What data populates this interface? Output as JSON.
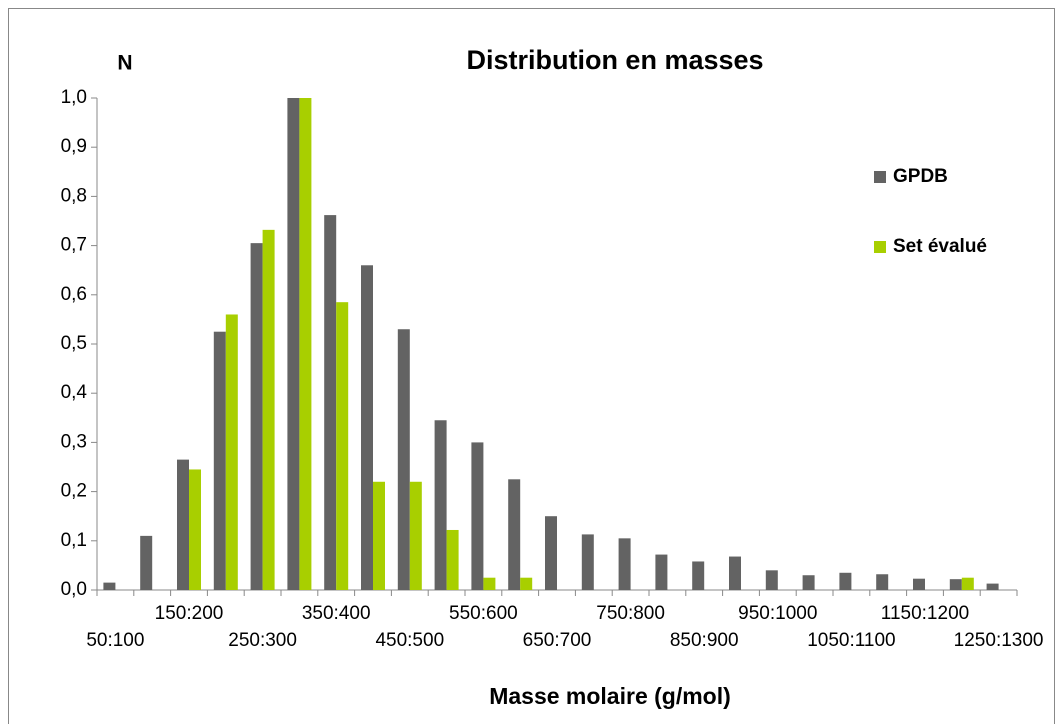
{
  "chart_data": {
    "type": "bar",
    "title": "Distribution en masses",
    "y_label": "N",
    "x_label": "Masse molaire (g/mol)",
    "categories": [
      "50:100",
      null,
      "150:200",
      null,
      "250:300",
      null,
      "350:400",
      null,
      "450:500",
      null,
      "550:600",
      null,
      "650:700",
      null,
      "750:800",
      null,
      "850:900",
      null,
      "950:1000",
      null,
      "1050:1100",
      null,
      "1150:1200",
      null,
      "1250:1300"
    ],
    "series": [
      {
        "name": "GPDB",
        "color": "#636363",
        "values": [
          0.015,
          0.11,
          0.265,
          0.525,
          0.705,
          1.0,
          0.762,
          0.66,
          0.53,
          0.345,
          0.3,
          0.225,
          0.15,
          0.113,
          0.105,
          0.072,
          0.058,
          0.068,
          0.04,
          0.03,
          0.035,
          0.032,
          0.023,
          0.022,
          0.013
        ]
      },
      {
        "name": "Set évalué",
        "color": "#a8cf00",
        "values": [
          0,
          0,
          0.245,
          0.56,
          0.732,
          1.0,
          0.585,
          0.22,
          0.22,
          0.122,
          0.025,
          0.025,
          0,
          0,
          0,
          0,
          0,
          0,
          0,
          0,
          0,
          0,
          0,
          0.025,
          0
        ]
      }
    ],
    "ylim": [
      0,
      1
    ],
    "yticks": [
      {
        "value": 0,
        "label": "0,0"
      },
      {
        "value": 0.1,
        "label": "0,1"
      },
      {
        "value": 0.2,
        "label": "0,2"
      },
      {
        "value": 0.3,
        "label": "0,3"
      },
      {
        "value": 0.4,
        "label": "0,4"
      },
      {
        "value": 0.5,
        "label": "0,5"
      },
      {
        "value": 0.6,
        "label": "0,6"
      },
      {
        "value": 0.7,
        "label": "0,7"
      },
      {
        "value": 0.8,
        "label": "0,8"
      },
      {
        "value": 0.9,
        "label": "0,9"
      },
      {
        "value": 1,
        "label": "1,0"
      }
    ],
    "legend": "right"
  }
}
